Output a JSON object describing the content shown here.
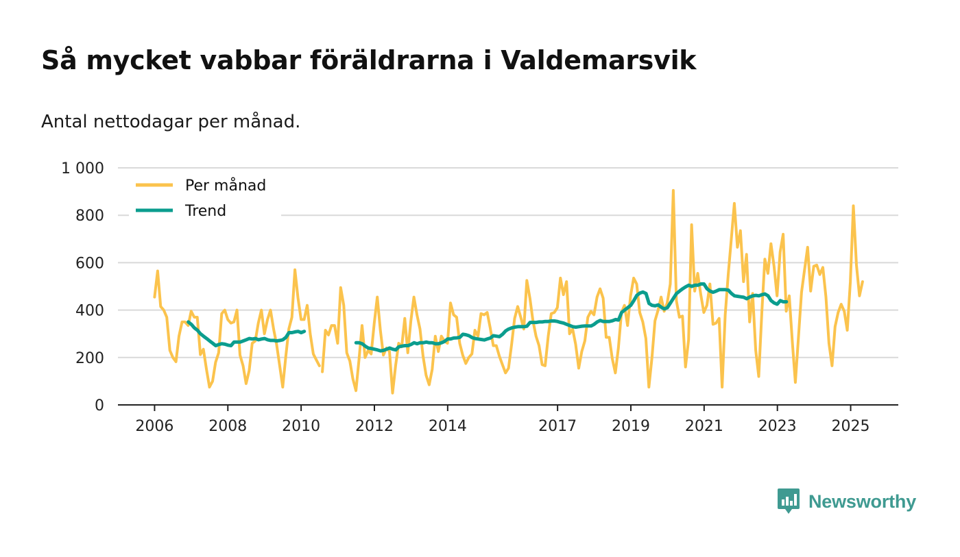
{
  "title": "Så mycket vabbar föräldrarna i Valdemarsvik",
  "subtitle": "Antal nettodagar per månad.",
  "brand": "Newsworthy",
  "colors": {
    "monthly": "#fbc34d",
    "trend": "#0b9d8e",
    "grid": "#d9d9d9",
    "axis": "#222222",
    "brand": "#3f9a91"
  },
  "chart_data": {
    "type": "line",
    "title": "Så mycket vabbar föräldrarna i Valdemarsvik",
    "ylabel": "Antal nettodagar per månad.",
    "ylim": [
      0,
      1000
    ],
    "yticks": [
      0,
      200,
      400,
      600,
      800,
      1000
    ],
    "ytick_labels": [
      "0",
      "200",
      "400",
      "600",
      "800",
      "1 000"
    ],
    "xlim": [
      2005.0,
      2026.3
    ],
    "xticks": [
      2006,
      2008,
      2010,
      2012,
      2014,
      2017,
      2019,
      2021,
      2023,
      2025
    ],
    "xtick_labels": [
      "2006",
      "2008",
      "2010",
      "2012",
      "2014",
      "2017",
      "2019",
      "2021",
      "2023",
      "2025"
    ],
    "legend": [
      "Per månad",
      "Trend"
    ],
    "legend_position": "top-left",
    "series": [
      {
        "name": "Per månad",
        "segments": [
          {
            "start": 2006.0,
            "step": 0.0833,
            "values": [
              455,
              565,
              415,
              400,
              370,
              230,
              200,
              182,
              290,
              350,
              350,
              335,
              395,
              370,
              370,
              212,
              235,
              150,
              75,
              100,
              180,
              220,
              385,
              400,
              360,
              345,
              350,
              400,
              210,
              165,
              90,
              145,
              260,
              270,
              345,
              400,
              300,
              360,
              400,
              320,
              255,
              165,
              75,
              205,
              320,
              370,
              570,
              450,
              360,
              360,
              420,
              300,
              215,
              190,
              165
            ]
          },
          {
            "start": 2010.58,
            "step": 0.0833,
            "values": [
              140,
              315,
              295,
              335,
              335,
              260,
              495,
              420,
              220,
              185,
              110,
              60,
              190,
              335,
              200,
              230,
              215,
              345,
              455,
              315,
              210,
              240,
              225,
              50,
              165,
              260,
              245,
              365,
              220,
              355,
              455,
              380,
              320,
              205,
              125,
              85,
              150,
              290,
              225,
              290,
              270,
              260,
              430,
              380,
              370,
              260,
              210,
              175,
              200,
              215,
              315,
              290,
              385,
              380,
              390,
              325,
              250,
              250,
              205,
              170,
              135,
              155,
              255,
              365,
              415,
              370,
              320,
              525,
              450,
              355,
              290,
              250,
              170,
              165,
              290,
              385,
              390,
              410,
              535,
              465,
              520,
              300,
              320,
              255,
              155,
              225,
              270,
              370,
              395,
              380,
              455,
              490,
              450,
              285,
              285,
              195,
              135,
              240,
              390,
              420,
              335,
              460,
              535,
              510,
              390,
              350,
              280,
              75,
              200,
              355,
              400,
              455,
              395,
              430,
              510,
              905,
              440,
              370,
              375,
              160,
              275,
              760,
              480,
              555,
              465,
              390,
              420,
              510,
              340,
              345,
              365,
              75,
              380,
              550,
              700,
              850,
              665,
              735,
              520,
              635,
              350,
              470,
              230,
              120,
              390,
              615,
              555,
              680,
              585,
              460,
              645,
              720,
              395,
              460,
              265,
              95,
              285,
              475,
              570,
              665,
              480,
              585,
              590,
              550,
              580,
              455,
              260,
              165,
              330,
              390,
              425,
              395,
              315,
              520,
              840,
              590,
              460,
              520
            ]
          }
        ]
      },
      {
        "name": "Trend",
        "segments": [
          {
            "start": 2006.92,
            "step": 0.0833,
            "values": [
              350,
              340,
              325,
              315,
              300,
              290,
              280,
              270,
              260,
              250,
              255,
              258,
              256,
              252,
              250,
              265,
              265,
              265,
              270,
              275,
              280,
              278,
              280,
              275,
              278,
              280,
              275,
              272,
              272,
              270,
              272,
              275,
              285,
              305,
              305,
              308,
              310,
              305,
              310
            ]
          },
          {
            "start": 2011.5,
            "step": 0.0833,
            "values": [
              262,
              262,
              258,
              248,
              240,
              238,
              235,
              232,
              228,
              230,
              235,
              240,
              235,
              232,
              245,
              248,
              250,
              250,
              255,
              262,
              258,
              262,
              262,
              265,
              262,
              262,
              258,
              258,
              262,
              268,
              278,
              278,
              282,
              283,
              285,
              298,
              296,
              292,
              284,
              280,
              278,
              276,
              274,
              278,
              282,
              292,
              290,
              288,
              298,
              312,
              320,
              325,
              328,
              330,
              330,
              330,
              332,
              348,
              348,
              348,
              350,
              350,
              352,
              352,
              354,
              354,
              352,
              348,
              345,
              340,
              335,
              330,
              328,
              330,
              332,
              333,
              333,
              333,
              340,
              350,
              356,
              352,
              352,
              352,
              355,
              360,
              358,
              390,
              400,
              410,
              420,
              440,
              462,
              472,
              476,
              470,
              428,
              420,
              418,
              422,
              412,
              405,
              410,
              430,
              450,
              470,
              480,
              490,
              498,
              505,
              500,
              505,
              505,
              510,
              510,
              490,
              480,
              475,
              480,
              486,
              486,
              486,
              484,
              470,
              460,
              458,
              456,
              454,
              448,
              455,
              460,
              462,
              460,
              465,
              468,
              460,
              440,
              430,
              425,
              440,
              435,
              435
            ]
          }
        ]
      }
    ]
  }
}
